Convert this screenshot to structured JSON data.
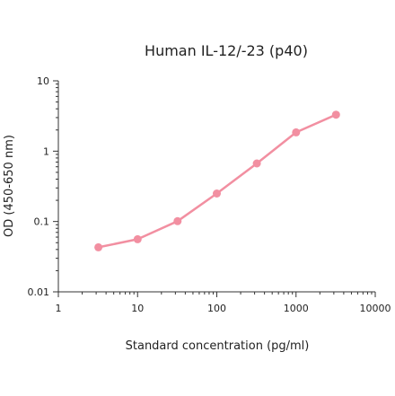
{
  "chart_data": {
    "type": "line",
    "title": "Human IL-12/-23 (p40)",
    "xlabel": "Standard concentration (pg/ml)",
    "ylabel": "OD (450-650 nm)",
    "xscale": "log",
    "yscale": "log",
    "xlim": [
      1,
      10000
    ],
    "ylim": [
      0.01,
      10
    ],
    "xticks": [
      {
        "value": 1,
        "label": "1"
      },
      {
        "value": 10,
        "label": "10"
      },
      {
        "value": 100,
        "label": "100"
      },
      {
        "value": 1000,
        "label": "1000"
      },
      {
        "value": 10000,
        "label": "10000"
      }
    ],
    "yticks": [
      {
        "value": 0.01,
        "label": "0.01"
      },
      {
        "value": 0.1,
        "label": "0.1"
      },
      {
        "value": 1,
        "label": "1"
      },
      {
        "value": 10,
        "label": "10"
      }
    ],
    "grid": false,
    "series": [
      {
        "color": "#f28fa1",
        "x": [
          3.2,
          10,
          32,
          100,
          320,
          1000,
          3200
        ],
        "y": [
          0.043,
          0.056,
          0.101,
          0.25,
          0.67,
          1.85,
          3.3
        ]
      }
    ]
  }
}
